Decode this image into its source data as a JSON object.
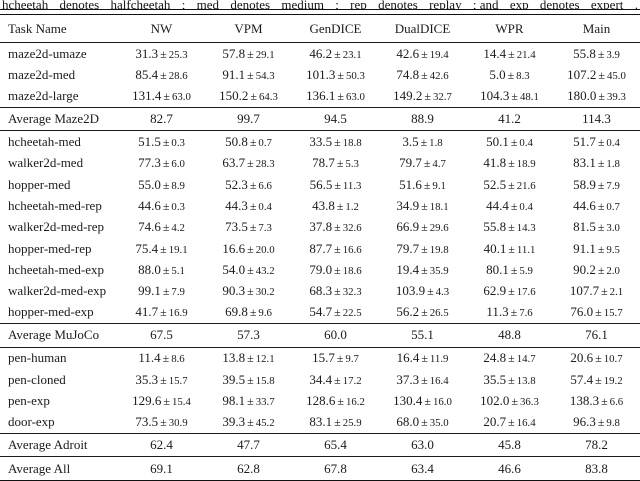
{
  "caption_fragment": {
    "w1": "hcheetah",
    "w2": "denotes",
    "w3": "halfcheetah",
    "w4": ";",
    "w5": "med",
    "w6": "denotes",
    "w7": "medium",
    "w8": ";",
    "w9": "rep",
    "w10": "denotes",
    "w11": "replay",
    "w12": "; and",
    "w13": "exp",
    "w14": "denotes",
    "w15": "expert",
    "w16": "."
  },
  "table": {
    "pm": "±",
    "columns": [
      "Task Name",
      "NW",
      "VPM",
      "GenDICE",
      "DualDICE",
      "WPR",
      "Main"
    ],
    "sections": [
      {
        "rows": [
          {
            "task": "maze2d-umaze",
            "vals": [
              {
                "m": "31.3",
                "s": "25.3"
              },
              {
                "m": "57.8",
                "s": "29.1"
              },
              {
                "m": "46.2",
                "s": "23.1"
              },
              {
                "m": "42.6",
                "s": "19.4"
              },
              {
                "m": "14.4",
                "s": "21.4"
              },
              {
                "m": "55.8",
                "s": "3.9"
              }
            ]
          },
          {
            "task": "maze2d-med",
            "vals": [
              {
                "m": "85.4",
                "s": "28.6"
              },
              {
                "m": "91.1",
                "s": "54.3"
              },
              {
                "m": "101.3",
                "s": "50.3"
              },
              {
                "m": "74.8",
                "s": "42.6"
              },
              {
                "m": "5.0",
                "s": "8.3"
              },
              {
                "m": "107.2",
                "s": "45.0"
              }
            ]
          },
          {
            "task": "maze2d-large",
            "vals": [
              {
                "m": "131.4",
                "s": "63.0"
              },
              {
                "m": "150.2",
                "s": "64.3"
              },
              {
                "m": "136.1",
                "s": "63.0"
              },
              {
                "m": "149.2",
                "s": "32.7"
              },
              {
                "m": "104.3",
                "s": "48.1"
              },
              {
                "m": "180.0",
                "s": "39.3"
              }
            ]
          }
        ],
        "avg": {
          "task": "Average Maze2D",
          "vals": [
            "82.7",
            "99.7",
            "94.5",
            "88.9",
            "41.2",
            "114.3"
          ]
        }
      },
      {
        "rows": [
          {
            "task": "hcheetah-med",
            "vals": [
              {
                "m": "51.5",
                "s": "0.3"
              },
              {
                "m": "50.8",
                "s": "0.7"
              },
              {
                "m": "33.5",
                "s": "18.8"
              },
              {
                "m": "3.5",
                "s": "1.8"
              },
              {
                "m": "50.1",
                "s": "0.4"
              },
              {
                "m": "51.7",
                "s": "0.4"
              }
            ]
          },
          {
            "task": "walker2d-med",
            "vals": [
              {
                "m": "77.3",
                "s": "6.0"
              },
              {
                "m": "63.7",
                "s": "28.3"
              },
              {
                "m": "78.7",
                "s": "5.3"
              },
              {
                "m": "79.7",
                "s": "4.7"
              },
              {
                "m": "41.8",
                "s": "18.9"
              },
              {
                "m": "83.1",
                "s": "1.8"
              }
            ]
          },
          {
            "task": "hopper-med",
            "vals": [
              {
                "m": "55.0",
                "s": "8.9"
              },
              {
                "m": "52.3",
                "s": "6.6"
              },
              {
                "m": "56.5",
                "s": "11.3"
              },
              {
                "m": "51.6",
                "s": "9.1"
              },
              {
                "m": "52.5",
                "s": "21.6"
              },
              {
                "m": "58.9",
                "s": "7.9"
              }
            ]
          },
          {
            "task": "hcheetah-med-rep",
            "vals": [
              {
                "m": "44.6",
                "s": "0.3"
              },
              {
                "m": "44.3",
                "s": "0.4"
              },
              {
                "m": "43.8",
                "s": "1.2"
              },
              {
                "m": "34.9",
                "s": "18.1"
              },
              {
                "m": "44.4",
                "s": "0.4"
              },
              {
                "m": "44.6",
                "s": "0.7"
              }
            ]
          },
          {
            "task": "walker2d-med-rep",
            "vals": [
              {
                "m": "74.6",
                "s": "4.2"
              },
              {
                "m": "73.5",
                "s": "7.3"
              },
              {
                "m": "37.8",
                "s": "32.6"
              },
              {
                "m": "66.9",
                "s": "29.6"
              },
              {
                "m": "55.8",
                "s": "14.3"
              },
              {
                "m": "81.5",
                "s": "3.0"
              }
            ]
          },
          {
            "task": "hopper-med-rep",
            "vals": [
              {
                "m": "75.4",
                "s": "19.1"
              },
              {
                "m": "16.6",
                "s": "20.0"
              },
              {
                "m": "87.7",
                "s": "16.6"
              },
              {
                "m": "79.7",
                "s": "19.8"
              },
              {
                "m": "40.1",
                "s": "11.1"
              },
              {
                "m": "91.1",
                "s": "9.5"
              }
            ]
          },
          {
            "task": "hcheetah-med-exp",
            "vals": [
              {
                "m": "88.0",
                "s": "5.1"
              },
              {
                "m": "54.0",
                "s": "43.2"
              },
              {
                "m": "79.0",
                "s": "18.6"
              },
              {
                "m": "19.4",
                "s": "35.9"
              },
              {
                "m": "80.1",
                "s": "5.9"
              },
              {
                "m": "90.2",
                "s": "2.0"
              }
            ]
          },
          {
            "task": "walker2d-med-exp",
            "vals": [
              {
                "m": "99.1",
                "s": "7.9"
              },
              {
                "m": "90.3",
                "s": "30.2"
              },
              {
                "m": "68.3",
                "s": "32.3"
              },
              {
                "m": "103.9",
                "s": "4.3"
              },
              {
                "m": "62.9",
                "s": "17.6"
              },
              {
                "m": "107.7",
                "s": "2.1"
              }
            ]
          },
          {
            "task": "hopper-med-exp",
            "vals": [
              {
                "m": "41.7",
                "s": "16.9"
              },
              {
                "m": "69.8",
                "s": "9.6"
              },
              {
                "m": "54.7",
                "s": "22.5"
              },
              {
                "m": "56.2",
                "s": "26.5"
              },
              {
                "m": "11.3",
                "s": "7.6"
              },
              {
                "m": "76.0",
                "s": "15.7"
              }
            ]
          }
        ],
        "avg": {
          "task": "Average MuJoCo",
          "vals": [
            "67.5",
            "57.3",
            "60.0",
            "55.1",
            "48.8",
            "76.1"
          ]
        }
      },
      {
        "rows": [
          {
            "task": "pen-human",
            "vals": [
              {
                "m": "11.4",
                "s": "8.6"
              },
              {
                "m": "13.8",
                "s": "12.1"
              },
              {
                "m": "15.7",
                "s": "9.7"
              },
              {
                "m": "16.4",
                "s": "11.9"
              },
              {
                "m": "24.8",
                "s": "14.7"
              },
              {
                "m": "20.6",
                "s": "10.7"
              }
            ]
          },
          {
            "task": "pen-cloned",
            "vals": [
              {
                "m": "35.3",
                "s": "15.7"
              },
              {
                "m": "39.5",
                "s": "15.8"
              },
              {
                "m": "34.4",
                "s": "17.2"
              },
              {
                "m": "37.3",
                "s": "16.4"
              },
              {
                "m": "35.5",
                "s": "13.8"
              },
              {
                "m": "57.4",
                "s": "19.2"
              }
            ]
          },
          {
            "task": "pen-exp",
            "vals": [
              {
                "m": "129.6",
                "s": "15.4"
              },
              {
                "m": "98.1",
                "s": "33.7"
              },
              {
                "m": "128.6",
                "s": "16.2"
              },
              {
                "m": "130.4",
                "s": "16.0"
              },
              {
                "m": "102.0",
                "s": "36.3"
              },
              {
                "m": "138.3",
                "s": "6.6"
              }
            ]
          },
          {
            "task": "door-exp",
            "vals": [
              {
                "m": "73.5",
                "s": "30.9"
              },
              {
                "m": "39.3",
                "s": "45.2"
              },
              {
                "m": "83.1",
                "s": "25.9"
              },
              {
                "m": "68.0",
                "s": "35.0"
              },
              {
                "m": "20.7",
                "s": "16.4"
              },
              {
                "m": "96.3",
                "s": "9.8"
              }
            ]
          }
        ],
        "avg": {
          "task": "Average Adroit",
          "vals": [
            "62.4",
            "47.7",
            "65.4",
            "63.0",
            "45.8",
            "78.2"
          ]
        }
      }
    ],
    "overall": {
      "task": "Average All",
      "vals": [
        "69.1",
        "62.8",
        "67.8",
        "63.4",
        "46.6",
        "83.8"
      ]
    }
  }
}
